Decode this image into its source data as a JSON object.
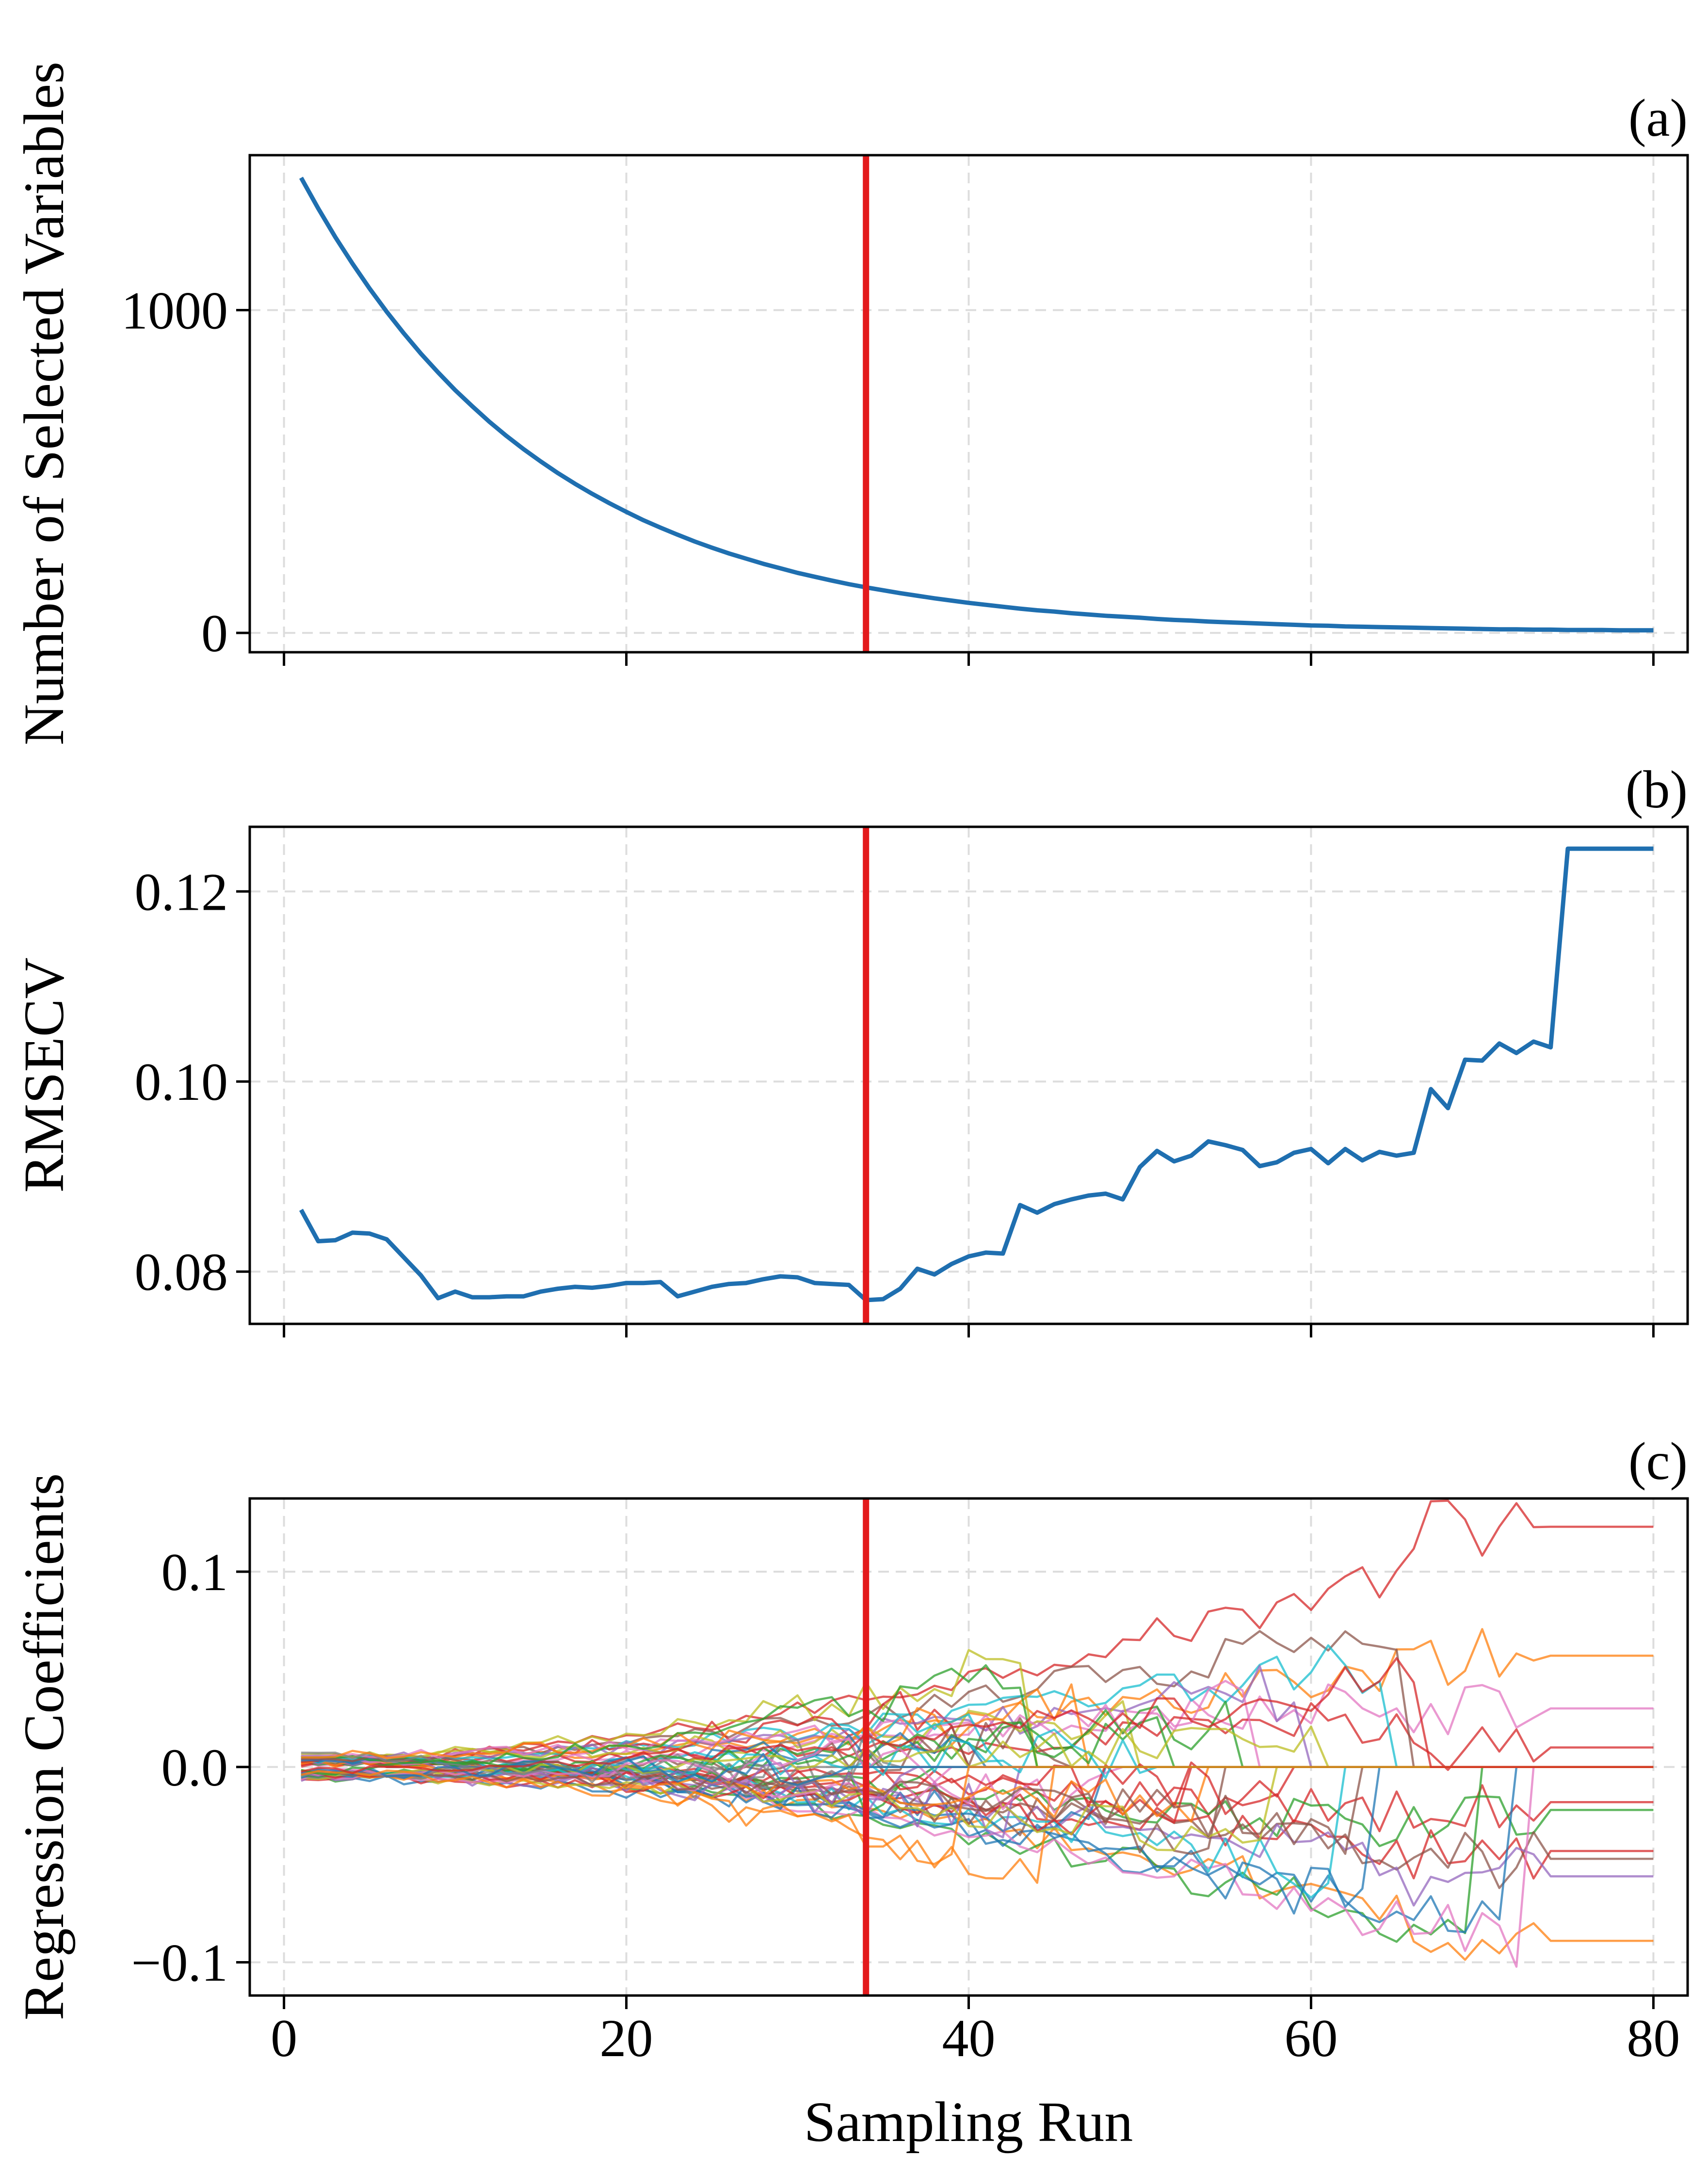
{
  "chart_data": [
    {
      "panel": "(a)",
      "type": "line",
      "ylabel": "Number of Selected Variables",
      "xlim": [
        -2,
        82
      ],
      "ylim": [
        -60,
        1480
      ],
      "xticks": [
        0,
        20,
        40,
        60,
        80
      ],
      "yticks": [
        0,
        1000
      ],
      "ytick_labels": [
        "0",
        "1000"
      ],
      "grid": true,
      "marker_x": 34,
      "marker_color": "#e31a1c",
      "series": [
        {
          "color": "#1f6fb0",
          "x": [
            1,
            2,
            3,
            4,
            5,
            6,
            7,
            8,
            9,
            10,
            11,
            12,
            13,
            14,
            15,
            16,
            17,
            18,
            19,
            20,
            21,
            22,
            23,
            24,
            25,
            26,
            27,
            28,
            29,
            30,
            31,
            32,
            33,
            34,
            35,
            36,
            37,
            38,
            39,
            40,
            41,
            42,
            43,
            44,
            45,
            46,
            47,
            48,
            49,
            50,
            51,
            52,
            53,
            54,
            55,
            56,
            57,
            58,
            59,
            60,
            61,
            62,
            63,
            64,
            65,
            66,
            67,
            68,
            69,
            70,
            71,
            72,
            73,
            74,
            75,
            76,
            77,
            78,
            79,
            80
          ],
          "y": [
            1410,
            1315,
            1226,
            1144,
            1067,
            995,
            928,
            865,
            807,
            752,
            702,
            654,
            610,
            569,
            531,
            495,
            462,
            431,
            402,
            375,
            349,
            326,
            304,
            283,
            264,
            246,
            230,
            214,
            200,
            186,
            174,
            162,
            151,
            141,
            132,
            123,
            115,
            107,
            100,
            93,
            87,
            81,
            75,
            70,
            66,
            61,
            57,
            53,
            50,
            47,
            43,
            40,
            38,
            35,
            33,
            31,
            29,
            27,
            25,
            23,
            22,
            20,
            19,
            18,
            17,
            16,
            15,
            14,
            13,
            12,
            11,
            11,
            10,
            10,
            9,
            9,
            9,
            8,
            8,
            8
          ]
        }
      ]
    },
    {
      "panel": "(b)",
      "type": "line",
      "ylabel": "RMSECV",
      "xlim": [
        -2,
        82
      ],
      "ylim": [
        0.0745,
        0.1268
      ],
      "xticks": [
        0,
        20,
        40,
        60,
        80
      ],
      "yticks": [
        0.08,
        0.1,
        0.12
      ],
      "ytick_labels": [
        "0.08",
        "0.10",
        "0.12"
      ],
      "grid": true,
      "marker_x": 34,
      "marker_color": "#e31a1c",
      "series": [
        {
          "color": "#1f6fb0",
          "x": [
            1,
            2,
            3,
            4,
            5,
            6,
            7,
            8,
            9,
            10,
            11,
            12,
            13,
            14,
            15,
            16,
            17,
            18,
            19,
            20,
            21,
            22,
            23,
            24,
            25,
            26,
            27,
            28,
            29,
            30,
            31,
            32,
            33,
            34,
            35,
            36,
            37,
            38,
            39,
            40,
            41,
            42,
            43,
            44,
            45,
            46,
            47,
            48,
            49,
            50,
            51,
            52,
            53,
            54,
            55,
            56,
            57,
            58,
            59,
            60,
            61,
            62,
            63,
            64,
            65,
            66,
            67,
            68,
            69,
            70,
            71,
            72,
            73,
            74,
            75,
            76,
            77,
            78,
            79,
            80
          ],
          "y": [
            0.0865,
            0.0832,
            0.0833,
            0.0841,
            0.084,
            0.0834,
            0.0815,
            0.0796,
            0.0772,
            0.0779,
            0.0773,
            0.0773,
            0.0774,
            0.0774,
            0.0779,
            0.0782,
            0.0784,
            0.0783,
            0.0785,
            0.0788,
            0.0788,
            0.0789,
            0.0774,
            0.0779,
            0.0784,
            0.0787,
            0.0788,
            0.0792,
            0.0795,
            0.0794,
            0.0788,
            0.0787,
            0.0786,
            0.077,
            0.0771,
            0.0782,
            0.0803,
            0.0797,
            0.0808,
            0.0816,
            0.082,
            0.0819,
            0.087,
            0.0862,
            0.0871,
            0.0876,
            0.088,
            0.0882,
            0.0876,
            0.091,
            0.0927,
            0.0916,
            0.0922,
            0.0937,
            0.0933,
            0.0928,
            0.0911,
            0.0915,
            0.0925,
            0.0929,
            0.0914,
            0.0929,
            0.0917,
            0.0926,
            0.0922,
            0.0925,
            0.0992,
            0.0972,
            0.1023,
            0.1022,
            0.104,
            0.103,
            0.1042,
            0.1036,
            0.1245,
            0.1245,
            0.1245,
            0.1245,
            0.1245,
            0.1245
          ]
        }
      ]
    },
    {
      "panel": "(c)",
      "type": "line",
      "ylabel": "Regression Coefficients",
      "xlabel": "Sampling Run",
      "xlim": [
        -2,
        82
      ],
      "ylim": [
        -0.117,
        0.1375
      ],
      "xticks": [
        0,
        20,
        40,
        60,
        80
      ],
      "xtick_labels": [
        "0",
        "20",
        "40",
        "60",
        "80"
      ],
      "yticks": [
        -0.1,
        0.0,
        0.1
      ],
      "ytick_labels": [
        "−0.1",
        "0.0",
        "0.1"
      ],
      "grid": true,
      "marker_x": 34,
      "marker_color": "#e31a1c",
      "x_range": [
        1,
        80
      ],
      "palette": [
        "#1f77b4",
        "#ff7f0e",
        "#2ca02c",
        "#d62728",
        "#9467bd",
        "#8c564b",
        "#e377c2",
        "#7f7f7f",
        "#bcbd22",
        "#17becf"
      ],
      "series": [
        {
          "color": "#d62728",
          "dropout": 81,
          "final": 0.123,
          "peak": 0.123
        },
        {
          "color": "#ff7f0e",
          "dropout": 81,
          "final": 0.057,
          "peak": 0.062
        },
        {
          "color": "#e377c2",
          "dropout": 81,
          "final": 0.03,
          "peak": 0.045
        },
        {
          "color": "#d62728",
          "dropout": 81,
          "final": 0.01,
          "peak": 0.03
        },
        {
          "color": "#d62728",
          "dropout": 81,
          "final": -0.018,
          "peak": -0.03
        },
        {
          "color": "#2ca02c",
          "dropout": 81,
          "final": -0.022,
          "peak": -0.04
        },
        {
          "color": "#d62728",
          "dropout": 81,
          "final": -0.043,
          "peak": -0.052
        },
        {
          "color": "#8c564b",
          "dropout": 81,
          "final": -0.047,
          "peak": -0.05
        },
        {
          "color": "#9467bd",
          "dropout": 81,
          "final": -0.056,
          "peak": -0.06
        },
        {
          "color": "#ff7f0e",
          "dropout": 81,
          "final": -0.089,
          "peak": -0.089
        },
        {
          "color": "#8c564b",
          "dropout": 66,
          "final": 0.086,
          "peak": 0.075
        },
        {
          "color": "#17becf",
          "dropout": 65,
          "final": 0.055,
          "peak": 0.055
        },
        {
          "color": "#bcbd22",
          "dropout": 44,
          "final": 0.063,
          "peak": 0.055
        },
        {
          "color": "#2ca02c",
          "dropout": 70,
          "final": -0.095,
          "peak": -0.09
        },
        {
          "color": "#1f77b4",
          "dropout": 72,
          "final": -0.065,
          "peak": -0.088
        },
        {
          "color": "#e377c2",
          "dropout": 73,
          "final": -0.105,
          "peak": -0.095
        },
        {
          "color": "#ff7f0e",
          "dropout": 45,
          "final": -0.06,
          "peak": -0.063
        },
        {
          "color": "#d62728",
          "dropout": 40,
          "final": 0.03,
          "peak": 0.03
        },
        {
          "color": "#9467bd",
          "dropout": 60,
          "final": 0.04,
          "peak": 0.04
        },
        {
          "color": "#17becf",
          "dropout": 62,
          "final": -0.055,
          "peak": -0.055
        },
        {
          "color": "#1f77b4",
          "dropout": 64,
          "final": -0.07,
          "peak": -0.072
        },
        {
          "color": "#2ca02c",
          "dropout": 38,
          "final": -0.015,
          "peak": -0.018
        },
        {
          "color": "#bcbd22",
          "dropout": 50,
          "final": 0.02,
          "peak": 0.024
        },
        {
          "color": "#8c564b",
          "dropout": 55,
          "final": -0.04,
          "peak": -0.04
        },
        {
          "color": "#e377c2",
          "dropout": 57,
          "final": 0.035,
          "peak": 0.035
        },
        {
          "color": "#7f7f7f",
          "dropout": 30,
          "final": -0.008,
          "peak": -0.01
        },
        {
          "color": "#ff7f0e",
          "dropout": 47,
          "final": 0.026,
          "peak": 0.028
        },
        {
          "color": "#1f77b4",
          "dropout": 48,
          "final": -0.03,
          "peak": -0.03
        },
        {
          "color": "#2ca02c",
          "dropout": 52,
          "final": 0.015,
          "peak": 0.018
        },
        {
          "color": "#d62728",
          "dropout": 53,
          "final": -0.025,
          "peak": -0.028
        },
        {
          "color": "#17becf",
          "dropout": 42,
          "final": 0.018,
          "peak": 0.02
        },
        {
          "color": "#9467bd",
          "dropout": 43,
          "final": -0.022,
          "peak": -0.022
        },
        {
          "color": "#bcbd22",
          "dropout": 58,
          "final": -0.035,
          "peak": -0.036
        },
        {
          "color": "#8c564b",
          "dropout": 46,
          "final": 0.012,
          "peak": 0.014
        },
        {
          "color": "#e377c2",
          "dropout": 49,
          "final": -0.012,
          "peak": -0.015
        },
        {
          "color": "#7f7f7f",
          "dropout": 36,
          "final": 0.006,
          "peak": 0.008
        },
        {
          "color": "#ff7f0e",
          "dropout": 54,
          "final": -0.018,
          "peak": -0.02
        },
        {
          "color": "#1f77b4",
          "dropout": 41,
          "final": 0.01,
          "peak": 0.012
        },
        {
          "color": "#2ca02c",
          "dropout": 56,
          "final": 0.022,
          "peak": 0.024
        },
        {
          "color": "#d62728",
          "dropout": 59,
          "final": -0.01,
          "peak": -0.012
        },
        {
          "color": "#17becf",
          "dropout": 51,
          "final": 0.008,
          "peak": 0.01
        },
        {
          "color": "#9467bd",
          "dropout": 37,
          "final": -0.006,
          "peak": -0.008
        },
        {
          "color": "#bcbd22",
          "dropout": 61,
          "final": 0.016,
          "peak": 0.018
        },
        {
          "color": "#8c564b",
          "dropout": 63,
          "final": -0.028,
          "peak": -0.03
        },
        {
          "color": "#e377c2",
          "dropout": 39,
          "final": 0.004,
          "peak": 0.005
        },
        {
          "color": "#7f7f7f",
          "dropout": 35,
          "final": -0.004,
          "peak": -0.005
        },
        {
          "color": "#1f77b4",
          "dropout": 33,
          "final": 0.003,
          "peak": 0.004
        },
        {
          "color": "#2ca02c",
          "dropout": 44,
          "final": 0.05,
          "peak": 0.05
        },
        {
          "color": "#ff7f0e",
          "dropout": 40,
          "final": -0.04,
          "peak": -0.04
        },
        {
          "color": "#d62728",
          "dropout": 67,
          "final": 0.045,
          "peak": 0.045
        }
      ]
    }
  ]
}
